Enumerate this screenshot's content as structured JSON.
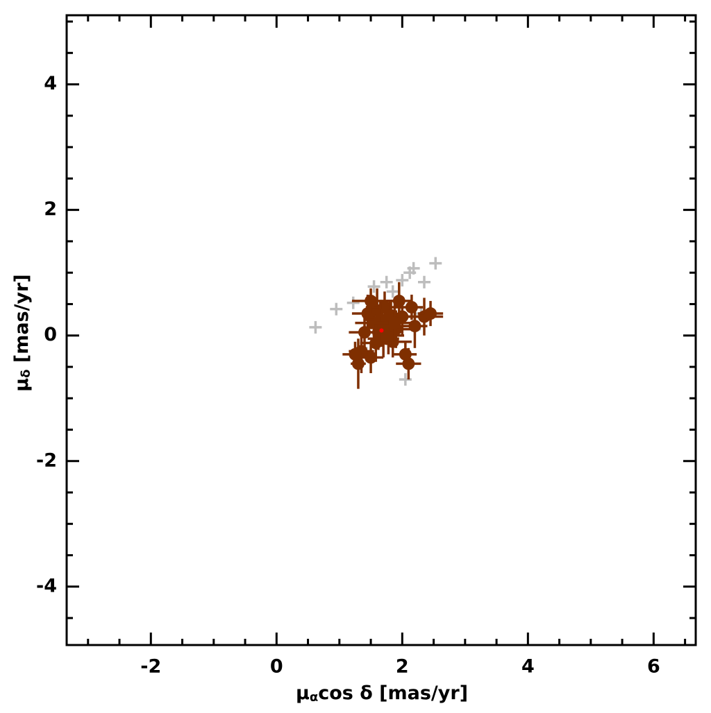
{
  "chart_data": {
    "type": "scatter",
    "x_label": {
      "base": "μ",
      "sub": "α",
      "rest": "cos δ [mas/yr]"
    },
    "y_label": {
      "base": "μ",
      "sub": "δ",
      "rest": " [mas/yr]"
    },
    "xlim": [
      -3.34,
      6.67
    ],
    "ylim": [
      -4.93,
      5.1
    ],
    "xticks": [
      -2,
      0,
      2,
      4,
      6
    ],
    "yticks": [
      -4,
      -2,
      0,
      2,
      4
    ],
    "xminorticks": [
      -3,
      -2.5,
      -1.5,
      -1,
      -0.5,
      0.5,
      1,
      1.5,
      2.5,
      3,
      3.5,
      4.5,
      5,
      5.5,
      6.5
    ],
    "yminorticks": [
      -4.5,
      -3.5,
      -3,
      -2.5,
      -1.5,
      -1,
      -0.5,
      0.5,
      1,
      1.5,
      2.5,
      3,
      3.5,
      4.5,
      5
    ],
    "series": [
      {
        "color": "#bdbdbd",
        "marker": "plus",
        "x": [
          0.62,
          0.95,
          1.22,
          2.53,
          2.18,
          2.12,
          2.0,
          1.75,
          1.55,
          2.35,
          2.05,
          2.2,
          2.3,
          1.35,
          1.85
        ],
        "values": [
          0.13,
          0.42,
          0.52,
          1.15,
          1.07,
          1.0,
          0.88,
          0.85,
          0.78,
          0.85,
          -0.7,
          0.1,
          0.35,
          -0.2,
          0.7
        ]
      },
      {
        "color": "#7f2f00",
        "marker": "errorbar",
        "x": [
          1.75,
          1.62,
          1.8,
          1.55,
          1.9,
          1.7,
          1.45,
          2.0,
          1.85,
          1.6,
          1.35,
          1.3,
          1.5,
          2.35,
          2.45,
          2.1,
          2.05,
          1.95,
          1.72,
          1.4,
          1.25,
          2.2,
          1.65,
          1.78,
          1.68,
          1.82,
          1.58,
          2.15,
          1.5,
          1.88
        ],
        "values": [
          0.15,
          0.05,
          0.25,
          0.2,
          0.1,
          -0.05,
          0.35,
          0.3,
          -0.1,
          0.4,
          -0.25,
          -0.45,
          -0.35,
          0.3,
          0.35,
          -0.45,
          -0.3,
          0.55,
          0.45,
          0.05,
          -0.3,
          0.15,
          0.25,
          0.0,
          0.12,
          0.32,
          -0.12,
          0.45,
          0.55,
          0.2
        ],
        "xerr": [
          0.3,
          0.25,
          0.22,
          0.3,
          0.28,
          0.25,
          0.25,
          0.3,
          0.3,
          0.2,
          0.2,
          0.12,
          0.2,
          0.3,
          0.2,
          0.2,
          0.18,
          0.2,
          0.3,
          0.25,
          0.2,
          0.2,
          0.25,
          0.25,
          0.3,
          0.25,
          0.25,
          0.18,
          0.3,
          0.3
        ],
        "yerr": [
          0.3,
          0.28,
          0.3,
          0.25,
          0.3,
          0.3,
          0.3,
          0.3,
          0.25,
          0.35,
          0.35,
          0.4,
          0.25,
          0.3,
          0.2,
          0.25,
          0.2,
          0.3,
          0.25,
          0.3,
          0.2,
          0.35,
          0.3,
          0.3,
          0.3,
          0.25,
          0.3,
          0.2,
          0.2,
          0.3
        ]
      },
      {
        "color": "#ff0000",
        "marker": "dot",
        "x": [
          1.67
        ],
        "values": [
          0.08
        ]
      }
    ]
  }
}
